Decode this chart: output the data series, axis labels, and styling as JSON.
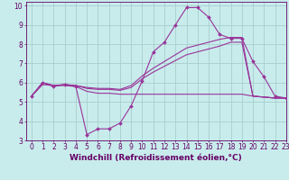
{
  "xlabel": "Windchill (Refroidissement éolien,°C)",
  "xlim": [
    -0.5,
    23
  ],
  "ylim": [
    3,
    10.2
  ],
  "xticks": [
    0,
    1,
    2,
    3,
    4,
    5,
    6,
    7,
    8,
    9,
    10,
    11,
    12,
    13,
    14,
    15,
    16,
    17,
    18,
    19,
    20,
    21,
    22,
    23
  ],
  "yticks": [
    3,
    4,
    5,
    6,
    7,
    8,
    9,
    10
  ],
  "background_color": "#c8ecec",
  "grid_color": "#a8cece",
  "line_color": "#993399",
  "lines": [
    {
      "x": [
        0,
        1,
        2,
        3,
        4,
        5,
        6,
        7,
        8,
        9,
        10,
        11,
        12,
        13,
        14,
        15,
        16,
        17,
        18,
        19,
        20,
        21,
        22,
        23
      ],
      "y": [
        5.3,
        6.0,
        5.8,
        5.9,
        5.8,
        3.3,
        3.6,
        3.6,
        3.9,
        4.8,
        6.1,
        7.6,
        8.1,
        9.0,
        9.9,
        9.9,
        9.4,
        8.5,
        8.3,
        8.3,
        7.1,
        6.3,
        5.3,
        5.2
      ],
      "has_marker": true
    },
    {
      "x": [
        0,
        1,
        2,
        3,
        4,
        5,
        6,
        7,
        8,
        9,
        10,
        11,
        12,
        13,
        14,
        15,
        16,
        17,
        18,
        19,
        20,
        21,
        22,
        23
      ],
      "y": [
        5.3,
        5.9,
        5.85,
        5.85,
        5.8,
        5.55,
        5.45,
        5.45,
        5.4,
        5.4,
        5.4,
        5.4,
        5.4,
        5.4,
        5.4,
        5.4,
        5.4,
        5.4,
        5.4,
        5.4,
        5.3,
        5.25,
        5.2,
        5.2
      ],
      "has_marker": false
    },
    {
      "x": [
        0,
        1,
        2,
        3,
        4,
        5,
        6,
        7,
        8,
        9,
        10,
        11,
        12,
        13,
        14,
        15,
        16,
        17,
        18,
        19,
        20,
        21,
        22,
        23
      ],
      "y": [
        5.3,
        6.0,
        5.85,
        5.9,
        5.85,
        5.7,
        5.65,
        5.65,
        5.6,
        5.75,
        6.2,
        6.55,
        6.85,
        7.15,
        7.45,
        7.6,
        7.75,
        7.9,
        8.1,
        8.1,
        5.3,
        5.25,
        5.2,
        5.2
      ],
      "has_marker": false
    },
    {
      "x": [
        0,
        1,
        2,
        3,
        4,
        5,
        6,
        7,
        8,
        9,
        10,
        11,
        12,
        13,
        14,
        15,
        16,
        17,
        18,
        19,
        20,
        21,
        22,
        23
      ],
      "y": [
        5.3,
        6.0,
        5.85,
        5.9,
        5.85,
        5.75,
        5.7,
        5.7,
        5.65,
        5.85,
        6.35,
        6.75,
        7.1,
        7.45,
        7.8,
        7.95,
        8.1,
        8.25,
        8.35,
        8.35,
        5.3,
        5.25,
        5.2,
        5.2
      ],
      "has_marker": false
    }
  ],
  "font_color": "#660066",
  "tick_fontsize": 5.5,
  "label_fontsize": 6.5
}
